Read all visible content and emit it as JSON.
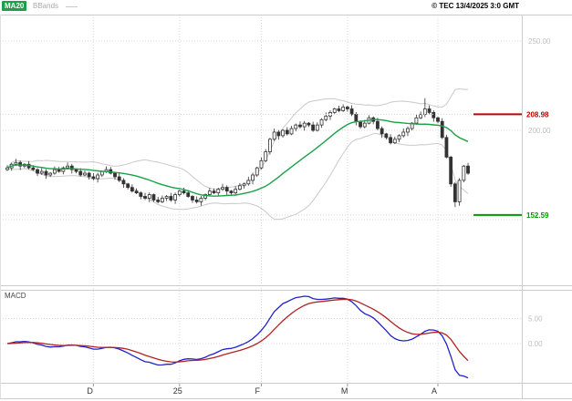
{
  "header": {
    "ma20_label": "MA20",
    "bbands_label": "BBands",
    "copyright": "© TEC 13/4/2025 3:0 GMT"
  },
  "macd_panel": {
    "label": "MACD"
  },
  "colors": {
    "ma20": "#1CA049",
    "bbands": "#c9c9c9",
    "candle": "#333333",
    "macd_line": "#2222CC",
    "macd_signal": "#B22222",
    "resistance": "#C00000",
    "support": "#009900",
    "grid": "#d8d8d8",
    "axis_label": "#bebebe",
    "month_label": "#333333"
  },
  "chart_data": {
    "type": "candlestick",
    "title": "",
    "indicators": [
      "MA20",
      "BBands(20,2)",
      "MACD(12,26,9)"
    ],
    "price_axis": {
      "gridline_values": [
        250,
        200,
        150
      ],
      "tick_labels": [
        {
          "value": 250,
          "label": "250.00"
        },
        {
          "value": 200,
          "label": "200.00"
        }
      ]
    },
    "levels": [
      {
        "value": 208.98,
        "label": "208.98",
        "role": "resistance",
        "color": "#C00000"
      },
      {
        "value": 152.59,
        "label": "152.59",
        "role": "support",
        "color": "#009900"
      }
    ],
    "macd_axis": {
      "gridline_values": [
        5,
        0
      ],
      "tick_labels": [
        {
          "value": 5,
          "label": "5.00"
        },
        {
          "value": 0,
          "label": "0.00"
        }
      ]
    },
    "x_axis": {
      "labels": [
        {
          "text": "D",
          "index": 20
        },
        {
          "text": "25",
          "index": 40
        },
        {
          "text": "F",
          "index": 59
        },
        {
          "text": "M",
          "index": 79
        },
        {
          "text": "A",
          "index": 100
        }
      ]
    },
    "candles": [
      [
        178,
        180.5,
        177.3,
        179
      ],
      [
        179,
        181.8,
        177.4,
        181
      ],
      [
        181,
        184,
        180,
        182
      ],
      [
        182,
        183.2,
        177.8,
        180
      ],
      [
        180,
        181.6,
        178.9,
        181
      ],
      [
        181,
        182.8,
        178.1,
        179
      ],
      [
        179,
        180.5,
        177.3,
        178
      ],
      [
        178,
        178.8,
        174.4,
        176
      ],
      [
        176,
        179,
        175,
        177
      ],
      [
        177,
        178.2,
        172.8,
        175
      ],
      [
        175,
        176.6,
        173.9,
        176
      ],
      [
        176,
        179.8,
        175.1,
        178
      ],
      [
        178,
        179.5,
        176.3,
        177
      ],
      [
        177,
        179.8,
        175.4,
        179
      ],
      [
        179,
        182,
        178,
        180
      ],
      [
        180,
        181.2,
        175.8,
        178
      ],
      [
        178,
        178.6,
        175.9,
        177
      ],
      [
        177,
        178.8,
        174.1,
        175
      ],
      [
        175,
        177.5,
        174.3,
        176
      ],
      [
        176,
        176.8,
        172.4,
        174
      ],
      [
        174,
        176,
        172,
        173
      ],
      [
        173,
        176.2,
        170.8,
        175
      ],
      [
        175,
        177.6,
        173.9,
        177
      ],
      [
        177,
        179.8,
        176.1,
        178
      ],
      [
        178,
        179.5,
        175.3,
        176
      ],
      [
        176,
        176.8,
        172.4,
        174
      ],
      [
        174,
        176,
        171,
        172
      ],
      [
        172,
        173.2,
        167.8,
        170
      ],
      [
        170,
        170.6,
        166.9,
        168
      ],
      [
        168,
        169.8,
        165.1,
        166
      ],
      [
        166,
        167.5,
        164.3,
        165
      ],
      [
        165,
        165.8,
        161.4,
        163
      ],
      [
        163,
        165,
        161,
        162
      ],
      [
        162,
        165.2,
        159.8,
        164
      ],
      [
        164,
        164.6,
        159.9,
        161
      ],
      [
        161,
        162.8,
        159.1,
        160
      ],
      [
        160,
        163.5,
        159.3,
        162
      ],
      [
        162,
        163.8,
        160.4,
        163
      ],
      [
        163,
        165,
        160,
        161
      ],
      [
        161,
        165.2,
        158.8,
        164
      ],
      [
        164,
        166.6,
        162.9,
        166
      ],
      [
        166,
        167.8,
        164.1,
        165
      ],
      [
        165,
        166.5,
        162.3,
        163
      ],
      [
        163,
        163.8,
        159.4,
        161
      ],
      [
        161,
        163,
        159,
        160
      ],
      [
        160,
        163.2,
        157.8,
        162
      ],
      [
        162,
        164.6,
        160.9,
        164
      ],
      [
        164,
        167.8,
        163.1,
        166
      ],
      [
        166,
        167.5,
        164.3,
        165
      ],
      [
        165,
        167.8,
        163.4,
        167
      ],
      [
        167,
        170,
        166,
        168
      ],
      [
        168,
        169.2,
        163.8,
        166
      ],
      [
        166,
        166.6,
        163.9,
        165
      ],
      [
        165,
        168.8,
        164.1,
        167
      ],
      [
        167,
        170.5,
        166.3,
        169
      ],
      [
        169,
        170.8,
        167.4,
        170
      ],
      [
        170,
        174,
        169,
        172
      ],
      [
        172,
        176.2,
        169.8,
        175
      ],
      [
        175,
        179.6,
        173.9,
        179
      ],
      [
        179,
        184.8,
        178.1,
        183
      ],
      [
        183,
        189.5,
        182.3,
        188
      ],
      [
        188,
        195.8,
        186.4,
        195
      ],
      [
        195,
        201,
        194,
        199
      ],
      [
        199,
        200.2,
        194.8,
        197
      ],
      [
        197,
        200.6,
        195.9,
        200
      ],
      [
        200,
        201.8,
        197.1,
        198
      ],
      [
        198,
        202.5,
        197.3,
        201
      ],
      [
        201,
        203.8,
        199.4,
        203
      ],
      [
        203,
        205,
        201,
        202
      ],
      [
        202,
        205.2,
        199.8,
        204
      ],
      [
        204,
        204.6,
        201.9,
        203
      ],
      [
        203,
        204.8,
        199.1,
        200
      ],
      [
        200,
        204.5,
        199.3,
        203
      ],
      [
        203,
        206.8,
        201.4,
        206
      ],
      [
        206,
        210,
        205,
        208
      ],
      [
        208,
        211.2,
        205.8,
        210
      ],
      [
        210,
        212.6,
        208.9,
        212
      ],
      [
        212,
        213.8,
        210.1,
        211
      ],
      [
        211,
        214.5,
        210.3,
        213
      ],
      [
        213,
        213.8,
        210.4,
        212
      ],
      [
        212,
        214,
        208,
        209
      ],
      [
        209,
        210.2,
        202.8,
        205
      ],
      [
        205,
        205.6,
        200.9,
        202
      ],
      [
        202,
        205.8,
        201.1,
        204
      ],
      [
        204,
        208.5,
        203.3,
        207
      ],
      [
        207,
        207.8,
        203.4,
        205
      ],
      [
        205,
        207,
        200,
        201
      ],
      [
        201,
        202.2,
        195.8,
        198
      ],
      [
        198,
        198.6,
        194.9,
        196
      ],
      [
        196,
        197.8,
        192.1,
        193
      ],
      [
        193,
        196.5,
        192.3,
        195
      ],
      [
        195,
        197.8,
        193.4,
        197
      ],
      [
        197,
        201,
        196,
        199
      ],
      [
        199,
        202.2,
        196.8,
        201
      ],
      [
        201,
        204.6,
        199.9,
        204
      ],
      [
        204,
        208.8,
        203.1,
        207
      ],
      [
        207,
        210.5,
        206.3,
        209
      ],
      [
        209,
        218,
        207.4,
        212
      ],
      [
        212,
        214,
        209,
        210
      ],
      [
        210,
        211.2,
        204.8,
        207
      ],
      [
        207,
        207.6,
        203.9,
        205
      ],
      [
        205,
        206.8,
        195.1,
        196
      ],
      [
        196,
        197.5,
        184.3,
        185
      ],
      [
        185,
        185.8,
        168.4,
        170
      ],
      [
        170,
        171,
        157,
        160
      ],
      [
        160,
        173.2,
        157.8,
        172
      ],
      [
        172,
        180.6,
        170.9,
        180
      ],
      [
        180,
        181.8,
        175.1,
        176
      ]
    ]
  }
}
